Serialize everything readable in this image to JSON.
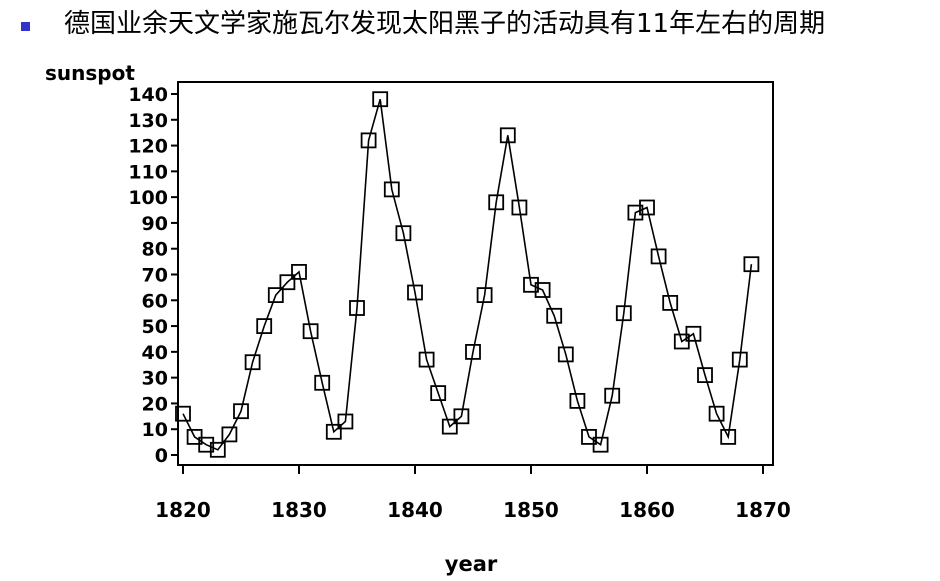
{
  "slide": {
    "bullet_text": "德国业余天文学家施瓦尔发现太阳黑子的活动具有11年左右的周期",
    "bullet_color": "#3333cc"
  },
  "chart_data": {
    "type": "line",
    "title": "",
    "xlabel": "year",
    "ylabel": "sunspot",
    "xlim": [
      1820,
      1870
    ],
    "ylim": [
      0,
      140
    ],
    "x_ticks": [
      1820,
      1830,
      1840,
      1850,
      1860,
      1870
    ],
    "y_ticks": [
      0,
      10,
      20,
      30,
      40,
      50,
      60,
      70,
      80,
      90,
      100,
      110,
      120,
      130,
      140
    ],
    "marker": "square",
    "line_color": "#000000",
    "series": [
      {
        "name": "sunspot",
        "x": [
          1820,
          1821,
          1822,
          1823,
          1824,
          1825,
          1826,
          1827,
          1828,
          1829,
          1830,
          1831,
          1832,
          1833,
          1834,
          1835,
          1836,
          1837,
          1838,
          1839,
          1840,
          1841,
          1842,
          1843,
          1844,
          1845,
          1846,
          1847,
          1848,
          1849,
          1850,
          1851,
          1852,
          1853,
          1854,
          1855,
          1856,
          1857,
          1858,
          1859,
          1860,
          1861,
          1862,
          1863,
          1864,
          1865,
          1866,
          1867,
          1868,
          1869
        ],
        "values": [
          16,
          7,
          4,
          2,
          8,
          17,
          36,
          50,
          62,
          67,
          71,
          48,
          28,
          9,
          13,
          57,
          122,
          138,
          103,
          86,
          63,
          37,
          24,
          11,
          15,
          40,
          62,
          98,
          124,
          96,
          66,
          64,
          54,
          39,
          21,
          7,
          4,
          23,
          55,
          94,
          96,
          77,
          59,
          44,
          47,
          31,
          16,
          7,
          37,
          74
        ]
      }
    ]
  }
}
